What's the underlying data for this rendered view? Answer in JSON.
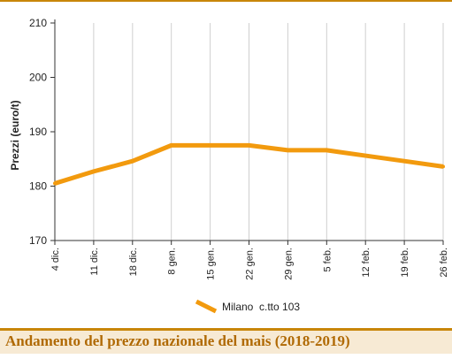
{
  "caption": "Andamento del prezzo nazionale del mais (2018-2019)",
  "colors": {
    "series": "#f29a0e",
    "accent": "#c8860a",
    "caption_bg": "#f7ead4",
    "caption_text": "#b06a05",
    "grid": "#cfcfcf",
    "axis": "#333333"
  },
  "chart_data": {
    "type": "line",
    "title": "",
    "xlabel": "",
    "ylabel": "Prezzi (euro/t)",
    "ylim": [
      170,
      210
    ],
    "yticks": [
      170,
      180,
      190,
      200,
      210
    ],
    "grid": "vertical",
    "legend_position": "bottom",
    "categories": [
      "4 dic.",
      "11 dic.",
      "18 dic.",
      "8 gen.",
      "15 gen.",
      "22 gen.",
      "29 gen.",
      "5 feb.",
      "12 feb.",
      "19 feb.",
      "26 feb."
    ],
    "series": [
      {
        "name": "Milano  c.tto 103",
        "values": [
          180.5,
          182.7,
          184.6,
          187.5,
          187.5,
          187.5,
          186.6,
          186.6,
          185.6,
          184.6,
          183.6
        ]
      }
    ]
  }
}
